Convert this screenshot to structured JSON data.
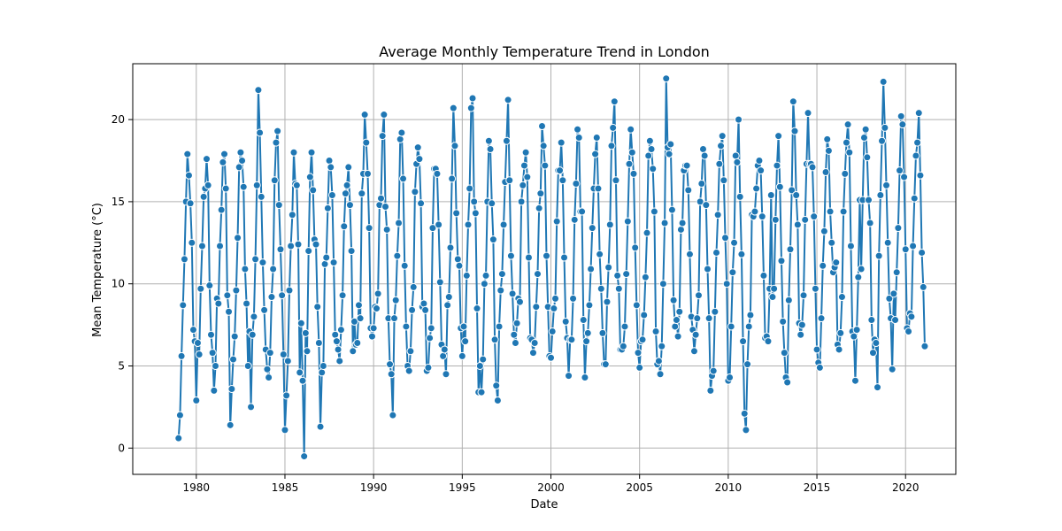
{
  "chart_data": {
    "type": "line",
    "title": "Average Monthly Temperature Trend in London",
    "xlabel": "Date",
    "ylabel": "Mean Temperature (°C)",
    "x_range": [
      "1976-06",
      "2022-11"
    ],
    "ylim": [
      -1.6,
      23.4
    ],
    "x_ticks": [
      "1980",
      "1985",
      "1990",
      "1995",
      "2000",
      "2005",
      "2010",
      "2015",
      "2020"
    ],
    "y_ticks": [
      "0",
      "5",
      "10",
      "15",
      "20"
    ],
    "grid": true,
    "start_date": "1979-01",
    "series": [
      {
        "color": "#1f77b4",
        "marker": "circle",
        "values": [
          0.6,
          2.0,
          5.6,
          8.7,
          11.5,
          15.0,
          17.9,
          16.6,
          14.9,
          12.5,
          7.2,
          6.5,
          2.9,
          6.4,
          5.7,
          9.7,
          12.3,
          15.3,
          15.8,
          17.6,
          16.0,
          9.9,
          6.9,
          5.8,
          3.5,
          5.0,
          9.1,
          8.8,
          12.3,
          14.5,
          17.4,
          17.9,
          15.8,
          9.3,
          8.3,
          1.4,
          3.6,
          5.4,
          6.8,
          9.6,
          12.8,
          17.1,
          18.0,
          17.5,
          15.9,
          10.9,
          8.8,
          5.0,
          7.1,
          2.5,
          6.9,
          8.0,
          11.5,
          16.0,
          21.8,
          19.2,
          15.3,
          11.3,
          8.4,
          6.0,
          4.8,
          4.3,
          5.8,
          9.2,
          10.9,
          16.3,
          18.6,
          19.3,
          14.8,
          12.1,
          9.3,
          5.7,
          1.1,
          3.2,
          5.3,
          9.6,
          12.3,
          14.2,
          18.0,
          16.1,
          16.0,
          12.4,
          4.6,
          7.6,
          4.1,
          -0.5,
          7.0,
          5.9,
          12.0,
          16.5,
          18.0,
          15.7,
          12.7,
          12.4,
          8.6,
          6.4,
          1.3,
          4.6,
          5.0,
          11.2,
          11.6,
          14.6,
          17.5,
          17.1,
          15.4,
          11.3,
          6.9,
          6.5,
          6.0,
          5.3,
          7.2,
          9.3,
          13.5,
          15.5,
          16.0,
          17.1,
          14.8,
          12.0,
          5.9,
          7.7,
          6.3,
          6.4,
          8.7,
          7.9,
          15.5,
          16.7,
          20.3,
          18.6,
          16.7,
          13.4,
          7.3,
          6.8,
          7.3,
          8.6,
          8.5,
          9.4,
          14.8,
          15.2,
          19.0,
          20.3,
          14.7,
          13.3,
          7.9,
          5.1,
          4.5,
          2.0,
          7.9,
          9.0,
          11.7,
          13.7,
          18.8,
          19.2,
          16.4,
          11.1,
          7.4,
          5.0,
          4.7,
          5.9,
          8.4,
          9.8,
          15.6,
          17.3,
          18.3,
          17.6,
          14.9,
          8.6,
          8.8,
          8.4,
          4.7,
          4.9,
          6.7,
          7.3,
          13.4,
          17.0,
          17.0,
          16.7,
          13.6,
          10.1,
          6.3,
          5.6,
          6.0,
          4.5,
          8.7,
          9.2,
          12.2,
          16.4,
          20.7,
          18.4,
          14.3,
          11.5,
          11.1,
          7.3,
          5.6,
          7.4,
          6.5,
          10.5,
          13.6,
          15.8,
          20.7,
          21.3,
          15.0,
          14.3,
          8.5,
          3.4,
          5.0,
          3.4,
          5.4,
          10.0,
          10.5,
          15.0,
          18.7,
          18.2,
          14.9,
          12.7,
          6.6,
          3.8,
          2.9,
          7.4,
          9.6,
          10.6,
          13.6,
          16.2,
          18.7,
          21.2,
          16.3,
          11.7,
          9.4,
          6.9,
          6.4,
          7.6,
          9.1,
          8.9,
          15.0,
          16.0,
          17.2,
          18.0,
          16.5,
          11.6,
          6.7,
          6.6,
          5.8,
          6.4,
          8.6,
          10.6,
          14.6,
          15.5,
          19.6,
          18.4,
          17.2,
          11.7,
          8.6,
          5.6,
          5.5,
          7.1,
          8.5,
          9.1,
          13.8,
          16.9,
          16.9,
          18.6,
          16.3,
          11.6,
          7.7,
          6.7,
          4.4,
          6.6,
          6.6,
          9.1,
          13.9,
          16.1,
          19.4,
          18.9,
          14.4,
          14.4,
          7.8,
          4.3,
          6.5,
          7.0,
          8.7,
          10.9,
          13.4,
          15.8,
          17.9,
          18.9,
          15.8,
          11.8,
          9.7,
          7.0,
          5.1,
          5.1,
          8.9,
          11.0,
          13.6,
          18.4,
          19.5,
          21.1,
          16.3,
          10.5,
          9.7,
          6.0,
          6.0,
          6.2,
          7.4,
          10.6,
          13.8,
          17.3,
          19.4,
          18.0,
          16.7,
          12.2,
          8.7,
          5.8,
          4.9,
          6.5,
          6.6,
          8.1,
          10.4,
          13.1,
          17.8,
          18.7,
          18.2,
          17.0,
          14.4,
          7.1,
          5.1,
          5.3,
          4.5,
          6.2,
          10.0,
          13.7,
          22.5,
          18.3,
          17.9,
          18.5,
          14.5,
          9.0,
          7.4,
          7.8,
          6.8,
          8.3,
          13.3,
          13.7,
          16.9,
          17.2,
          17.2,
          15.7,
          11.8,
          8.0,
          7.2,
          5.9,
          6.9,
          7.9,
          9.3,
          15.0,
          16.1,
          18.2,
          17.8,
          14.8,
          10.9,
          7.9,
          3.5,
          4.4,
          4.7,
          8.3,
          11.9,
          14.2,
          17.3,
          18.4,
          19.0,
          16.3,
          12.8,
          10.0,
          4.1,
          4.3,
          7.4,
          10.7,
          12.5,
          17.8,
          17.4,
          20.0,
          15.3,
          11.8,
          6.5,
          2.1,
          1.1,
          5.1,
          7.4,
          8.1,
          14.2,
          14.1,
          14.4,
          15.8,
          17.2,
          17.5,
          16.9,
          14.1,
          10.5,
          6.7,
          6.8,
          6.5,
          9.7,
          15.4,
          9.2,
          9.7,
          13.9,
          17.2,
          19.0,
          15.9,
          11.4,
          7.7,
          5.8,
          4.3,
          4.0,
          9.0,
          12.1,
          15.7,
          21.1,
          19.3,
          15.4,
          13.6,
          7.6,
          6.9,
          7.5,
          9.3,
          13.9,
          17.3,
          20.4,
          17.3,
          17.3,
          17.1,
          14.1,
          9.7,
          6.0,
          5.2,
          4.9,
          7.9,
          11.1,
          13.2,
          16.8,
          18.8,
          18.1,
          14.4,
          12.5,
          10.7,
          11.0,
          11.3,
          6.3,
          6.0,
          7.0,
          9.2,
          14.4,
          16.7,
          18.6,
          19.7,
          18.0,
          12.3,
          7.1,
          6.8,
          4.1,
          7.2,
          10.4,
          15.1,
          10.9,
          15.1,
          18.9,
          19.4,
          17.7,
          15.1,
          13.7,
          7.8,
          5.8,
          6.6,
          6.4,
          3.7,
          11.7,
          15.4,
          18.7,
          22.3,
          19.5,
          16.0,
          12.5,
          9.1,
          7.9,
          4.8,
          9.4,
          7.8,
          10.7,
          13.4,
          16.9,
          20.2,
          19.7,
          16.5,
          12.1,
          7.3,
          7.1,
          8.2,
          8.0,
          12.3,
          15.2,
          17.8,
          18.6,
          20.4,
          16.6,
          11.9,
          9.8,
          6.2
        ]
      }
    ]
  }
}
